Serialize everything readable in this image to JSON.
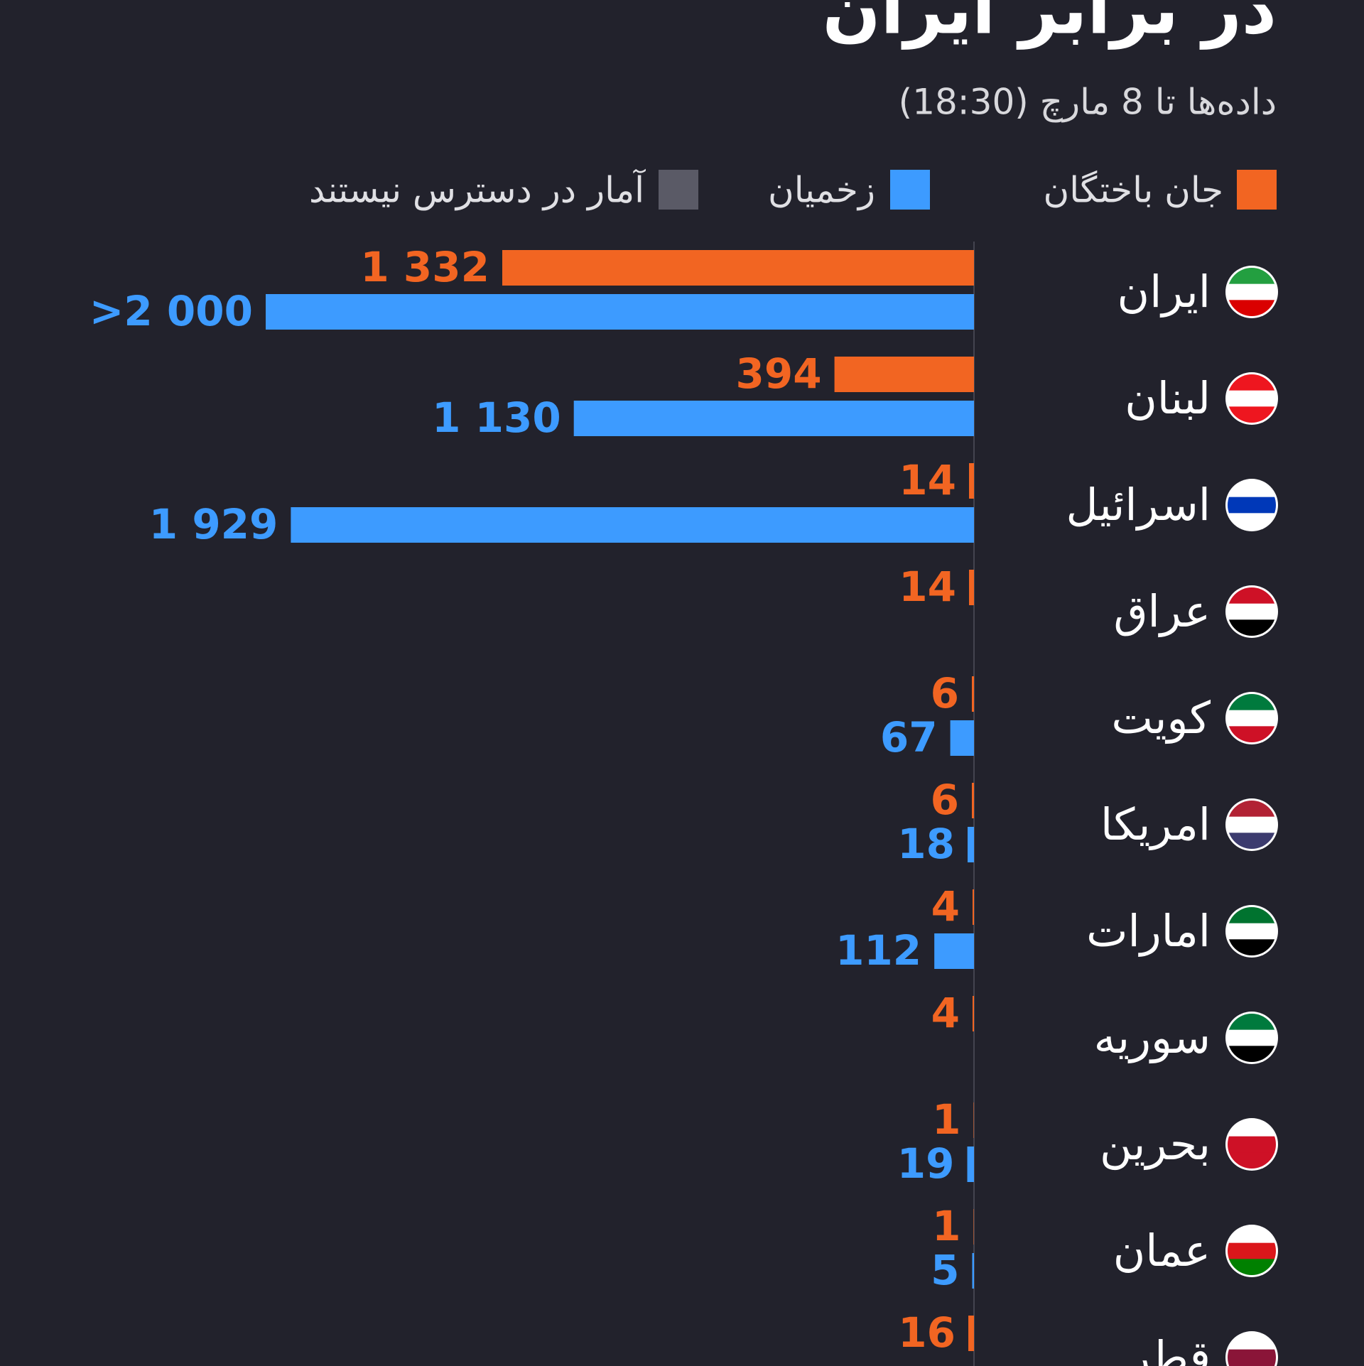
{
  "chart_data": {
    "type": "hbar",
    "title": "در برابر ایران",
    "subtitle": "داده‌ها تا 8 مارچ (18:30)",
    "categories": [
      "ایران",
      "لبنان",
      "اسرائیل",
      "عراق",
      "کویت",
      "امریکا",
      "امارات",
      "سوریه",
      "بحرین",
      "عمان",
      "قطر"
    ],
    "series": [
      {
        "name": "جان باختگان",
        "color": "#f26522",
        "values": [
          1332,
          394,
          14,
          14,
          6,
          6,
          4,
          4,
          1,
          1,
          16
        ],
        "value_labels": [
          "1 332",
          "394",
          "14",
          "14",
          "6",
          "6",
          "4",
          "4",
          "1",
          "1",
          "16"
        ]
      },
      {
        "name": "زخمیان",
        "color": "#3d9bff",
        "values": [
          2000,
          1130,
          1929,
          null,
          67,
          18,
          112,
          null,
          19,
          5,
          null
        ],
        "value_labels": [
          ">2 000",
          "1 130",
          "1 929",
          null,
          "67",
          "18",
          "112",
          null,
          "19",
          "5",
          null
        ]
      }
    ],
    "unavailable": {
      "name": "آمار در دسترس نیستند",
      "color": "#5a5a66"
    },
    "xlim": [
      0,
      2000
    ]
  }
}
